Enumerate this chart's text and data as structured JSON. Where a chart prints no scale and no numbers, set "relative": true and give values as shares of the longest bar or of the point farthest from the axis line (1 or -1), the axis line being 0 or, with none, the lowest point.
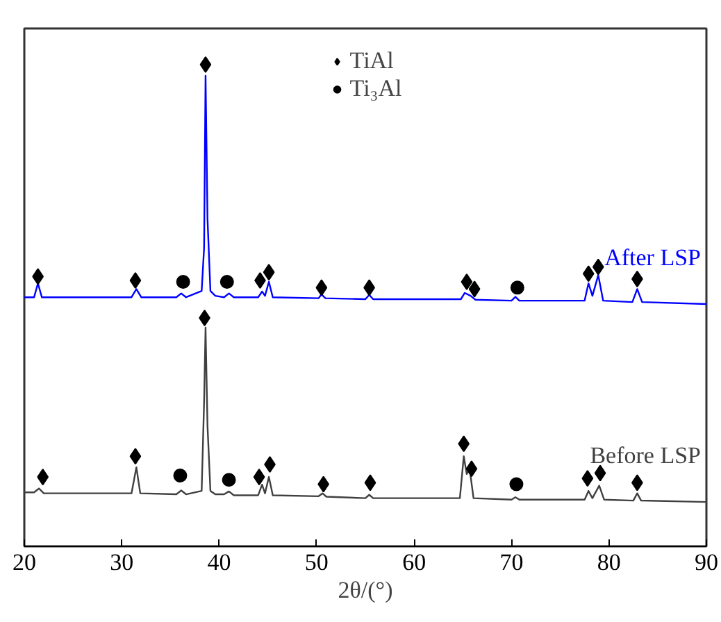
{
  "chart_data": {
    "type": "line",
    "xlabel": "2θ/(°)",
    "relative": true,
    "xlim": [
      20,
      90
    ],
    "xticks": [
      20,
      30,
      40,
      50,
      60,
      70,
      80,
      90
    ],
    "grid": false,
    "legend": "top",
    "series": [
      {
        "name": "After LSP",
        "color": "#0000ff",
        "marker": "none",
        "x": [
          20,
          21.0,
          21.4,
          21.8,
          31.0,
          31.5,
          32.0,
          35.6,
          36.1,
          36.6,
          38.2,
          38.45,
          38.6,
          38.8,
          39.1,
          39.6,
          40.5,
          41.0,
          41.5,
          44.0,
          44.4,
          44.7,
          45.1,
          45.5,
          50.2,
          50.5,
          50.9,
          55.0,
          55.4,
          55.8,
          64.8,
          65.2,
          65.8,
          66.3,
          70.0,
          70.4,
          70.8,
          77.5,
          77.9,
          78.3,
          78.9,
          79.4,
          82.4,
          82.9,
          83.4,
          90
        ],
        "values": [
          0.517,
          0.517,
          0.546,
          0.517,
          0.517,
          0.534,
          0.517,
          0.517,
          0.525,
          0.517,
          0.53,
          0.62,
          0.977,
          0.68,
          0.53,
          0.52,
          0.517,
          0.525,
          0.517,
          0.517,
          0.529,
          0.52,
          0.549,
          0.517,
          0.515,
          0.523,
          0.515,
          0.513,
          0.522,
          0.513,
          0.513,
          0.526,
          0.52,
          0.512,
          0.51,
          0.518,
          0.51,
          0.51,
          0.546,
          0.52,
          0.563,
          0.51,
          0.507,
          0.534,
          0.507,
          0.503
        ]
      },
      {
        "name": "Before LSP",
        "color": "#404040",
        "marker": "none",
        "x": [
          20,
          21.0,
          21.5,
          22.0,
          31.0,
          31.5,
          31.9,
          35.6,
          36.1,
          36.6,
          38.2,
          38.45,
          38.6,
          38.8,
          39.1,
          39.6,
          40.5,
          41.0,
          41.5,
          44.0,
          44.4,
          44.7,
          45.1,
          45.5,
          50.2,
          50.6,
          51.0,
          55.0,
          55.4,
          55.8,
          64.7,
          65.1,
          65.4,
          65.7,
          66.1,
          70.0,
          70.4,
          70.8,
          77.5,
          77.9,
          78.3,
          79.0,
          79.5,
          82.5,
          82.9,
          83.3,
          90
        ],
        "values": [
          0.112,
          0.112,
          0.12,
          0.11,
          0.11,
          0.164,
          0.11,
          0.108,
          0.116,
          0.108,
          0.115,
          0.3,
          0.454,
          0.25,
          0.115,
          0.108,
          0.108,
          0.114,
          0.106,
          0.106,
          0.128,
          0.11,
          0.144,
          0.106,
          0.104,
          0.11,
          0.103,
          0.1,
          0.107,
          0.1,
          0.1,
          0.187,
          0.15,
          0.161,
          0.1,
          0.097,
          0.102,
          0.097,
          0.097,
          0.115,
          0.1,
          0.126,
          0.097,
          0.095,
          0.11,
          0.095,
          0.092
        ]
      },
      {
        "name": "TiAl",
        "type": "scatter",
        "color": "#000000",
        "marker": "diamond",
        "x": [
          21.4,
          31.4,
          38.6,
          44.2,
          45.1,
          50.5,
          55.4,
          65.4,
          66.2,
          77.9,
          78.9,
          82.9,
          21.9,
          31.4,
          38.5,
          44.1,
          45.2,
          50.7,
          55.5,
          65.1,
          65.9,
          77.8,
          79.1,
          82.9
        ],
        "values": [
          0.56,
          0.552,
          1.0,
          0.552,
          0.569,
          0.537,
          0.537,
          0.549,
          0.534,
          0.566,
          0.58,
          0.555,
          0.144,
          0.187,
          0.474,
          0.144,
          0.17,
          0.129,
          0.132,
          0.213,
          0.161,
          0.141,
          0.152,
          0.132
        ]
      },
      {
        "name": "Ti₃Al",
        "type": "scatter",
        "color": "#000000",
        "marker": "circle",
        "x": [
          36.3,
          40.8,
          70.6,
          36.0,
          41.0,
          70.5
        ],
        "values": [
          0.549,
          0.549,
          0.537,
          0.147,
          0.138,
          0.129
        ]
      }
    ]
  }
}
